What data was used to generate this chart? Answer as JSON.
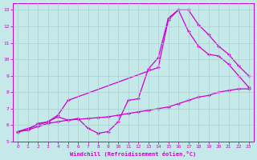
{
  "xlabel": "Windchill (Refroidissement éolien,°C)",
  "bg_color": "#c5e8e8",
  "line_color": "#cc00cc",
  "grid_color": "#aad0d0",
  "xlim": [
    -0.5,
    23.5
  ],
  "ylim": [
    5,
    13.4
  ],
  "yticks": [
    5,
    6,
    7,
    8,
    9,
    10,
    11,
    12,
    13
  ],
  "xticks": [
    0,
    1,
    2,
    3,
    4,
    5,
    6,
    7,
    8,
    9,
    10,
    11,
    12,
    13,
    14,
    15,
    16,
    17,
    18,
    19,
    20,
    21,
    22,
    23
  ],
  "line1_x": [
    0,
    1,
    2,
    3,
    4,
    5,
    6,
    7,
    8,
    9,
    10,
    11,
    12,
    13,
    14,
    15,
    16,
    17,
    18,
    19,
    20,
    21,
    22,
    23
  ],
  "line1_y": [
    5.6,
    5.7,
    5.9,
    6.1,
    6.2,
    6.3,
    6.35,
    6.4,
    6.45,
    6.5,
    6.6,
    6.7,
    6.8,
    6.9,
    7.0,
    7.1,
    7.3,
    7.5,
    7.7,
    7.8,
    8.0,
    8.1,
    8.2,
    8.2
  ],
  "line2_x": [
    0,
    1,
    2,
    3,
    4,
    5,
    6,
    7,
    8,
    9,
    10,
    11,
    12,
    13,
    14,
    15,
    16,
    17,
    18,
    19,
    20,
    21,
    22,
    23
  ],
  "line2_y": [
    5.6,
    5.7,
    6.1,
    6.2,
    6.5,
    6.3,
    6.4,
    5.8,
    5.5,
    5.6,
    6.2,
    7.5,
    7.6,
    9.4,
    10.1,
    12.5,
    13.0,
    13.0,
    12.1,
    11.5,
    10.8,
    10.3,
    9.6,
    9.0
  ],
  "line3_x": [
    0,
    3,
    4,
    5,
    14,
    15,
    16,
    17,
    18,
    19,
    20,
    21,
    22,
    23
  ],
  "line3_y": [
    5.6,
    6.2,
    6.6,
    7.5,
    9.5,
    12.4,
    13.0,
    11.7,
    10.8,
    10.3,
    10.2,
    9.7,
    9.0,
    8.3
  ]
}
